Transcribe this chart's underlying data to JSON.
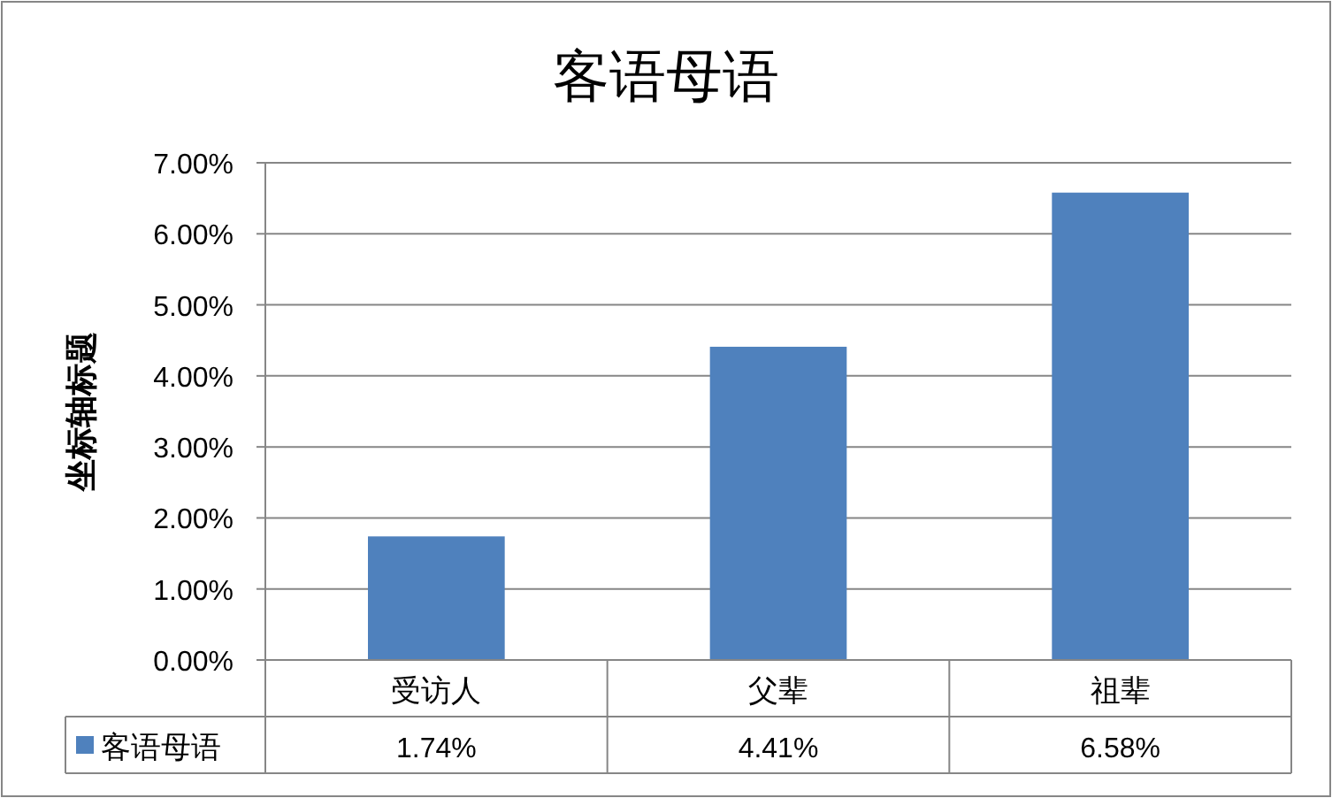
{
  "chart_data": {
    "type": "bar",
    "title": "客语母语",
    "ylabel": "坐标轴标题",
    "categories": [
      "受访人",
      "父辈",
      "祖辈"
    ],
    "series": [
      {
        "name": "客语母语",
        "color": "#4f81bd",
        "values": [
          1.74,
          4.41,
          6.58
        ],
        "value_labels": [
          "1.74%",
          "4.41%",
          "6.58%"
        ]
      }
    ],
    "ylim": [
      0,
      7
    ],
    "yticks": [
      {
        "value": 0,
        "label": "0.00%"
      },
      {
        "value": 1,
        "label": "1.00%"
      },
      {
        "value": 2,
        "label": "2.00%"
      },
      {
        "value": 3,
        "label": "3.00%"
      },
      {
        "value": 4,
        "label": "4.00%"
      },
      {
        "value": 5,
        "label": "5.00%"
      },
      {
        "value": 6,
        "label": "6.00%"
      },
      {
        "value": 7,
        "label": "7.00%"
      }
    ],
    "grid": "y",
    "legend": "bottom"
  }
}
